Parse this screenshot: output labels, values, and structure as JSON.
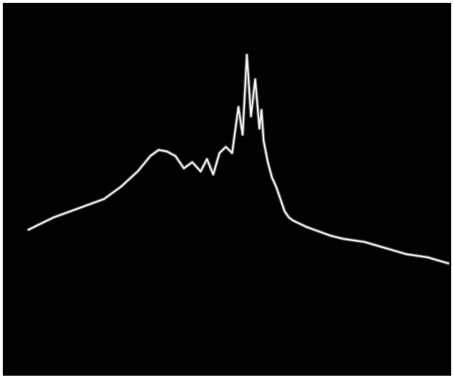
{
  "colors": {
    "screen_background": "#000000",
    "trace": "#f2f2f2",
    "readout_text": "#8a8a8a"
  },
  "readouts": {
    "top_left_line1": "",
    "top_left_line2": "",
    "top_center": "",
    "top_right_line1": "",
    "top_right_line2": "",
    "bottom_left_line1": "",
    "bottom_left_line2": "",
    "bottom_center": "",
    "bottom_right_line1": "",
    "bottom_right_line2": ""
  },
  "chart_data": {
    "type": "line",
    "title": "",
    "xlabel": "",
    "ylabel": "",
    "grid": false,
    "xlim": [
      0,
      1
    ],
    "ylim": [
      0,
      1
    ],
    "series": [
      {
        "x": [
          0.0,
          0.03,
          0.06,
          0.1,
          0.14,
          0.18,
          0.22,
          0.26,
          0.29,
          0.31,
          0.33,
          0.35,
          0.37,
          0.39,
          0.41,
          0.425,
          0.44,
          0.455,
          0.47,
          0.485,
          0.5,
          0.51,
          0.52,
          0.53,
          0.54,
          0.55,
          0.555,
          0.56,
          0.57,
          0.58,
          0.59,
          0.6,
          0.61,
          0.62,
          0.63,
          0.645,
          0.66,
          0.68,
          0.7,
          0.72,
          0.75,
          0.8,
          0.85,
          0.9,
          0.95,
          1.0
        ],
        "y": [
          0.33,
          0.35,
          0.37,
          0.39,
          0.41,
          0.43,
          0.47,
          0.52,
          0.57,
          0.59,
          0.585,
          0.57,
          0.53,
          0.55,
          0.52,
          0.56,
          0.51,
          0.58,
          0.6,
          0.58,
          0.73,
          0.64,
          0.9,
          0.7,
          0.82,
          0.66,
          0.72,
          0.62,
          0.55,
          0.5,
          0.47,
          0.43,
          0.39,
          0.37,
          0.36,
          0.35,
          0.34,
          0.33,
          0.32,
          0.31,
          0.3,
          0.29,
          0.27,
          0.25,
          0.24,
          0.22
        ]
      }
    ]
  }
}
